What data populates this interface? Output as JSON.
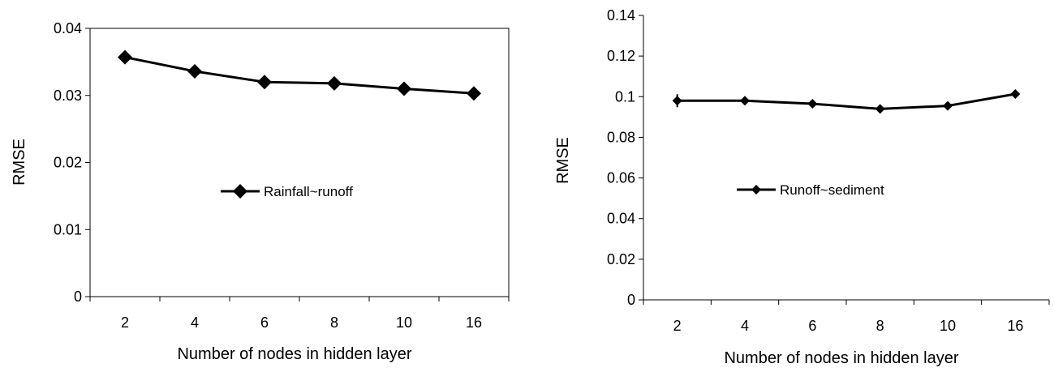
{
  "chart_data": [
    {
      "type": "line",
      "categories": [
        "2",
        "4",
        "6",
        "8",
        "10",
        "16"
      ],
      "series": [
        {
          "name": "Rainfall~runoff",
          "values": [
            0.0357,
            0.0336,
            0.032,
            0.0318,
            0.031,
            0.0303
          ]
        }
      ],
      "xlabel": "Number of nodes in hidden layer",
      "ylabel": "RMSE",
      "ylim": [
        0,
        0.04
      ],
      "yticks": [
        0,
        0.01,
        0.02,
        0.03,
        0.04
      ],
      "ytick_labels": [
        "0",
        "0.01",
        "0.02",
        "0.03",
        "0.04"
      ],
      "grid": false,
      "legend_position": "center",
      "marker": "diamond",
      "plot_frame": true
    },
    {
      "type": "line",
      "categories": [
        "2",
        "4",
        "6",
        "8",
        "10",
        "16"
      ],
      "series": [
        {
          "name": "Runoff~sediment",
          "values": [
            0.098,
            0.098,
            0.0965,
            0.094,
            0.0955,
            0.1013
          ]
        }
      ],
      "xlabel": "Number of nodes in hidden layer",
      "ylabel": "RMSE",
      "ylim": [
        0,
        0.14
      ],
      "yticks": [
        0,
        0.02,
        0.04,
        0.06,
        0.08,
        0.1,
        0.12,
        0.14
      ],
      "ytick_labels": [
        "0",
        "0.02",
        "0.04",
        "0.06",
        "0.08",
        "0.1",
        "0.12",
        "0.14"
      ],
      "grid": false,
      "legend_position": "center-left",
      "marker": "diamond",
      "plot_frame": false
    }
  ]
}
